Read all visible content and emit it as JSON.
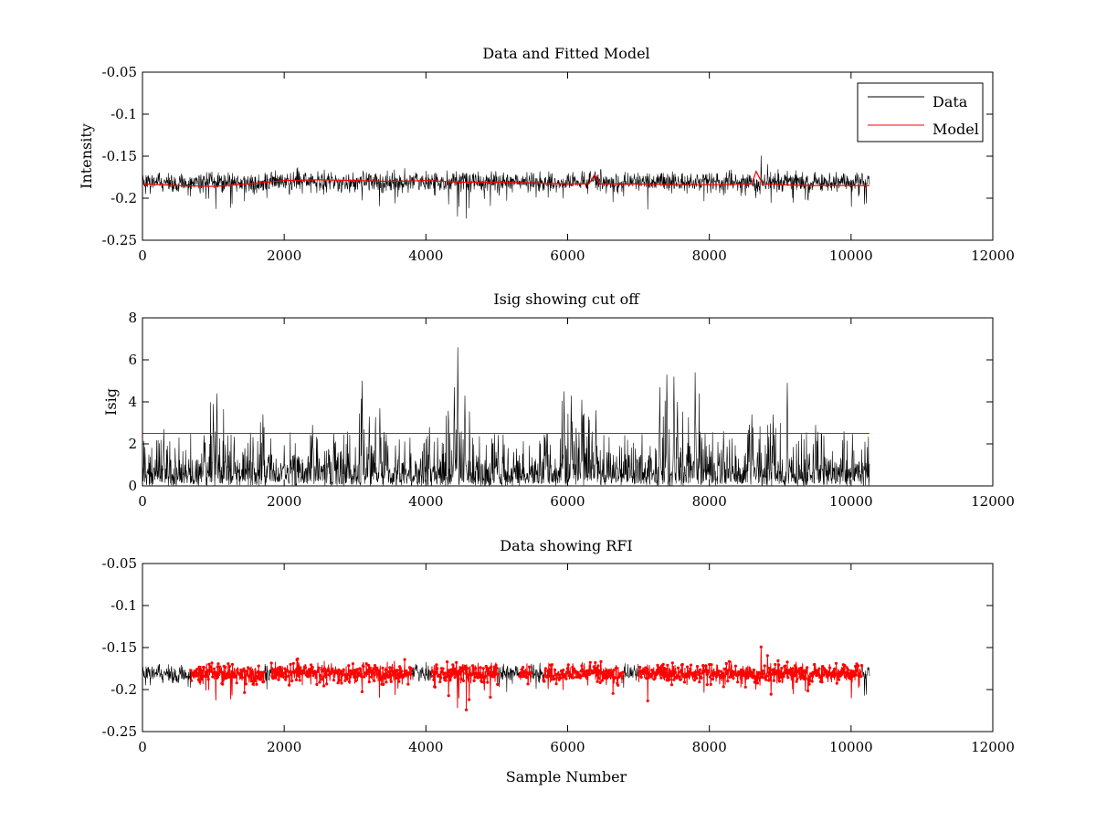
{
  "figure": {
    "background": "#ffffff",
    "colors": {
      "data": "#000000",
      "model": "#ff0000",
      "cutoff": "#ff0000",
      "rfi": "#ff0000"
    }
  },
  "chart_data": [
    {
      "type": "line",
      "title": "Data and Fitted Model",
      "xlabel": "",
      "ylabel": "Intensity",
      "xlim": [
        0,
        12000
      ],
      "ylim": [
        -0.25,
        -0.05
      ],
      "y_reversed": true,
      "xticks": [
        0,
        2000,
        4000,
        6000,
        8000,
        10000,
        12000
      ],
      "yticks": [
        -0.05,
        -0.1,
        -0.15,
        -0.2,
        -0.25
      ],
      "xtick_labels": [
        "0",
        "2000",
        "4000",
        "6000",
        "8000",
        "10000",
        "12000"
      ],
      "ytick_labels": [
        "-0.05",
        "-0.1",
        "-0.15",
        "-0.2",
        "-0.25"
      ],
      "legend": {
        "placement": "top-right",
        "entries": [
          "Data",
          "Model"
        ]
      },
      "series": [
        {
          "name": "Data",
          "color": "#000000",
          "x_range": [
            0,
            10260
          ],
          "baseline_y": -0.181,
          "envelope_x": [
            0,
            500,
            1000,
            1500,
            2000,
            2500,
            3000,
            3200,
            3500,
            4000,
            4450,
            5000,
            5500,
            6000,
            6350,
            6500,
            7000,
            7350,
            7500,
            7800,
            8000,
            8500,
            8650,
            9000,
            9500,
            10000,
            10260
          ],
          "envelope_min": [
            -0.195,
            -0.198,
            -0.218,
            -0.205,
            -0.197,
            -0.2,
            -0.205,
            -0.218,
            -0.208,
            -0.202,
            -0.232,
            -0.205,
            -0.2,
            -0.212,
            -0.2,
            -0.205,
            -0.21,
            -0.225,
            -0.21,
            -0.228,
            -0.205,
            -0.2,
            -0.205,
            -0.215,
            -0.205,
            -0.215,
            -0.205
          ],
          "envelope_max": [
            -0.17,
            -0.17,
            -0.168,
            -0.165,
            -0.162,
            -0.163,
            -0.165,
            -0.168,
            -0.163,
            -0.165,
            -0.168,
            -0.165,
            -0.168,
            -0.168,
            -0.153,
            -0.168,
            -0.168,
            -0.17,
            -0.168,
            -0.165,
            -0.165,
            -0.165,
            -0.144,
            -0.165,
            -0.168,
            -0.168,
            -0.172
          ]
        },
        {
          "name": "Model",
          "color": "#ff0000",
          "x": [
            0,
            500,
            1000,
            1500,
            2000,
            2500,
            3000,
            3500,
            4000,
            4500,
            5000,
            5500,
            6000,
            6300,
            6380,
            6450,
            7000,
            7500,
            8000,
            8600,
            8660,
            8750,
            9000,
            9500,
            10000,
            10260
          ],
          "values": [
            -0.183,
            -0.185,
            -0.186,
            -0.183,
            -0.179,
            -0.178,
            -0.179,
            -0.18,
            -0.179,
            -0.181,
            -0.181,
            -0.182,
            -0.183,
            -0.183,
            -0.172,
            -0.183,
            -0.183,
            -0.184,
            -0.184,
            -0.183,
            -0.168,
            -0.183,
            -0.184,
            -0.185,
            -0.185,
            -0.185
          ]
        }
      ]
    },
    {
      "type": "line",
      "title": "Isig showing cut off",
      "xlabel": "",
      "ylabel": "Isig",
      "xlim": [
        0,
        12000
      ],
      "ylim": [
        0,
        8
      ],
      "xticks": [
        0,
        2000,
        4000,
        6000,
        8000,
        10000,
        12000
      ],
      "yticks": [
        0,
        2,
        4,
        6,
        8
      ],
      "xtick_labels": [
        "0",
        "2000",
        "4000",
        "6000",
        "8000",
        "10000",
        "12000"
      ],
      "ytick_labels": [
        "0",
        "2",
        "4",
        "6",
        "8"
      ],
      "series": [
        {
          "name": "Isig",
          "color": "#000000",
          "x_range": [
            0,
            10260
          ],
          "spikes_x": [
            300,
            1000,
            1050,
            1700,
            2400,
            2700,
            3100,
            3200,
            3350,
            4050,
            4400,
            4450,
            4550,
            5700,
            5950,
            6050,
            6200,
            6400,
            7300,
            7400,
            7500,
            7550,
            7800,
            8200,
            8600,
            8900,
            9100,
            9500,
            9900
          ],
          "spikes_y": [
            2.7,
            3.9,
            4.4,
            3.4,
            2.9,
            2.5,
            5.0,
            3.3,
            3.7,
            2.8,
            4.7,
            6.6,
            4.3,
            2.5,
            4.5,
            4.3,
            4.1,
            3.6,
            4.7,
            5.3,
            5.2,
            4.0,
            5.4,
            2.6,
            3.4,
            3.4,
            4.9,
            2.9,
            2.6
          ]
        },
        {
          "name": "Cut off",
          "color": "#ff0000",
          "x": [
            0,
            10260
          ],
          "values": [
            2.5,
            2.5
          ]
        }
      ]
    },
    {
      "type": "scatter",
      "title": "Data showing RFI",
      "xlabel": "Sample Number",
      "ylabel": "",
      "xlim": [
        0,
        12000
      ],
      "ylim": [
        -0.25,
        -0.05
      ],
      "y_reversed": true,
      "xticks": [
        0,
        2000,
        4000,
        6000,
        8000,
        10000,
        12000
      ],
      "yticks": [
        -0.05,
        -0.1,
        -0.15,
        -0.2,
        -0.25
      ],
      "xtick_labels": [
        "0",
        "2000",
        "4000",
        "6000",
        "8000",
        "10000",
        "12000"
      ],
      "ytick_labels": [
        "-0.05",
        "-0.1",
        "-0.15",
        "-0.2",
        "-0.25"
      ],
      "series": [
        {
          "name": "Data",
          "color": "#000000",
          "x_range": [
            0,
            10260
          ]
        },
        {
          "name": "RFI",
          "color": "#ff0000",
          "marker": "dot",
          "flagged_ranges": [
            [
              680,
              1720
            ],
            [
              1820,
              3800
            ],
            [
              4080,
              5020
            ],
            [
              5320,
              5480
            ],
            [
              5660,
              6780
            ],
            [
              7000,
              10150
            ]
          ]
        }
      ]
    }
  ]
}
